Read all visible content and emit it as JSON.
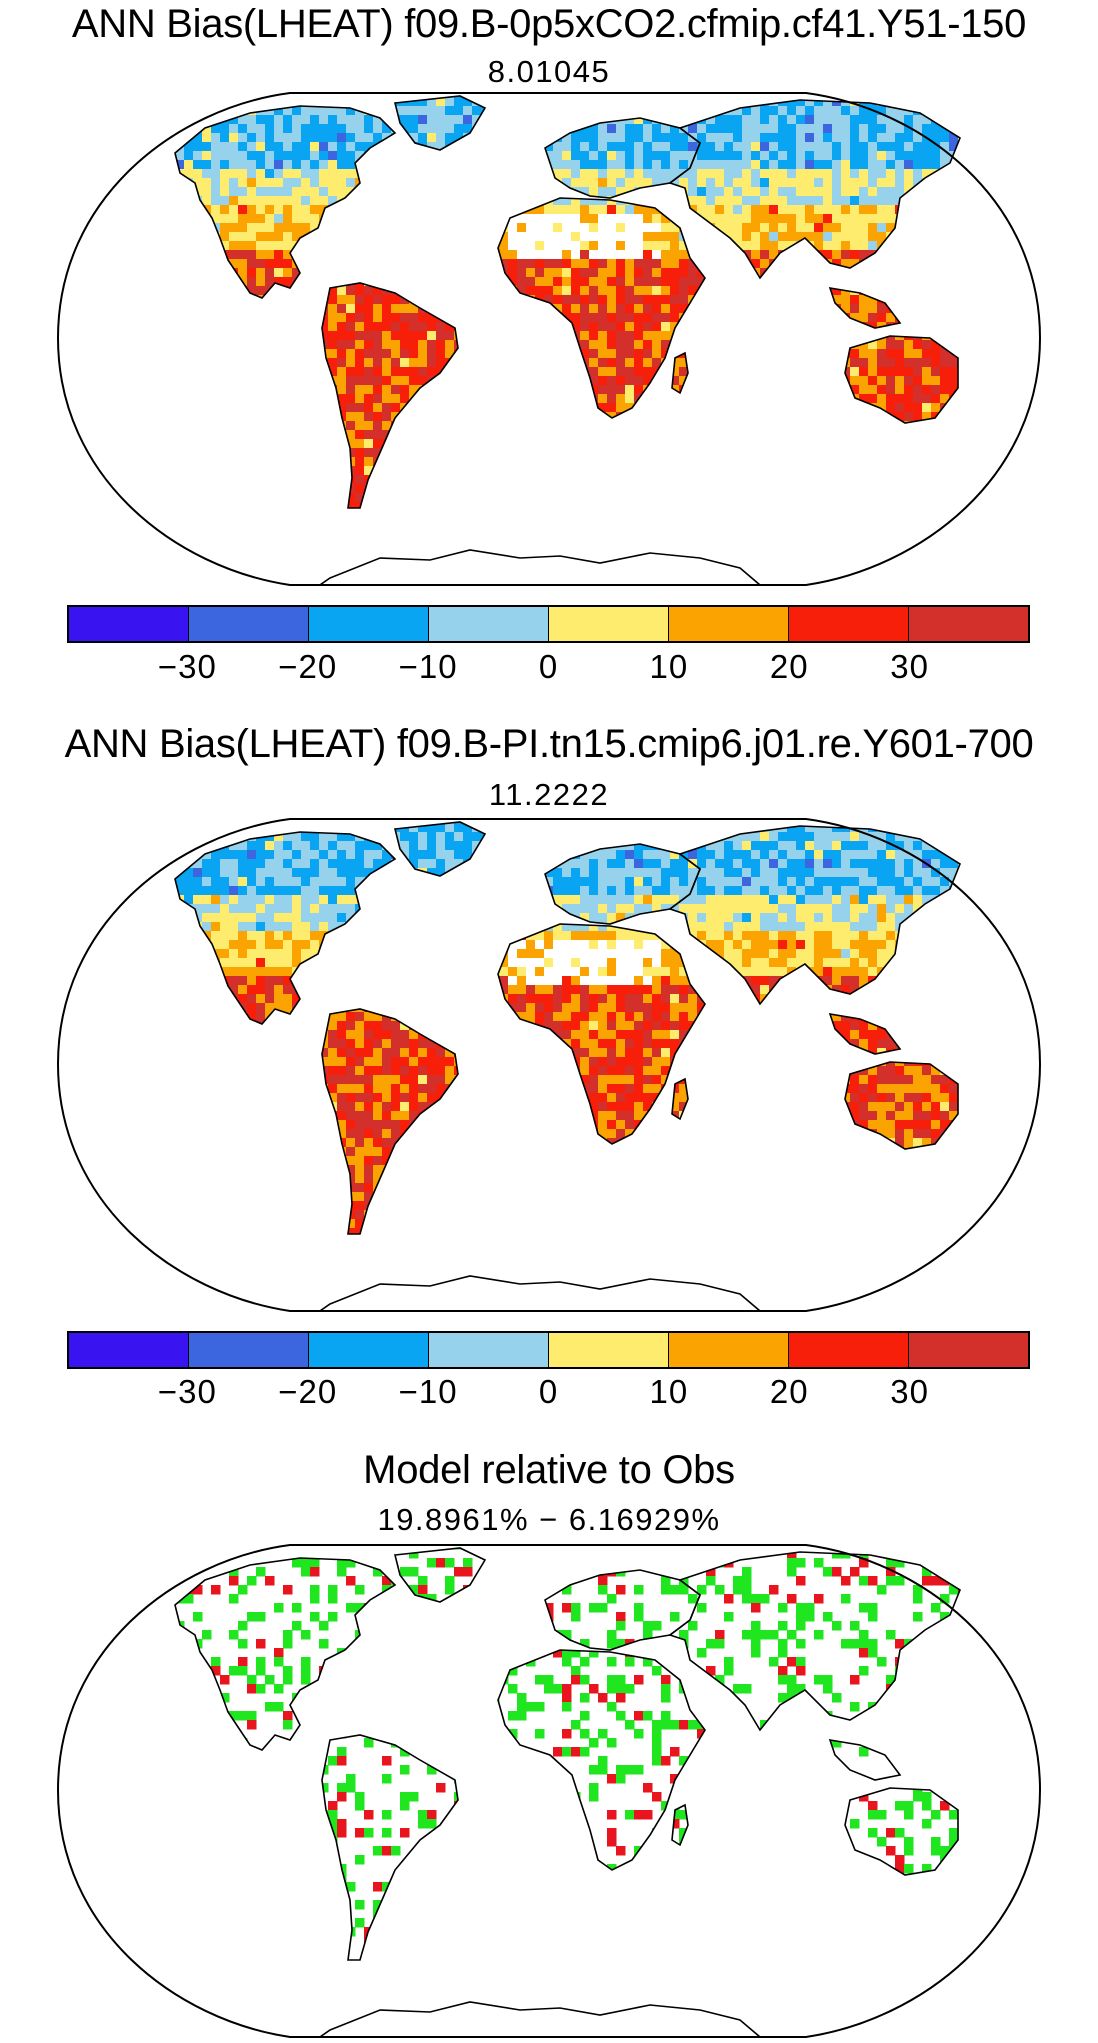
{
  "colorbar": {
    "colors": [
      "#3a14f0",
      "#3c66df",
      "#0aa5f2",
      "#96d2ec",
      "#fdec6e",
      "#fba300",
      "#f81f0a",
      "#d4302b"
    ],
    "ticks": [
      "−30",
      "−20",
      "−10",
      "0",
      "10",
      "20",
      "30"
    ]
  },
  "panels": [
    {
      "title": "ANN Bias(LHEAT) f09.B-0p5xCO2.cfmip.cf41.Y51-150",
      "subtitle": "8.01045",
      "field": "LHEAT bias",
      "mean": 8.01045
    },
    {
      "title": "ANN Bias(LHEAT) f09.B-PI.tn15.cmip6.j01.re.Y601-700",
      "subtitle": "11.2222",
      "field": "LHEAT bias",
      "mean": 11.2222
    },
    {
      "title": "Model relative to Obs",
      "subtitle": "19.8961% − 6.16929%",
      "field": "model relative to obs",
      "percent_green": 19.8961,
      "percent_red": 6.16929,
      "colors": {
        "green": "#1fe61f",
        "red": "#e8141e"
      }
    }
  ]
}
